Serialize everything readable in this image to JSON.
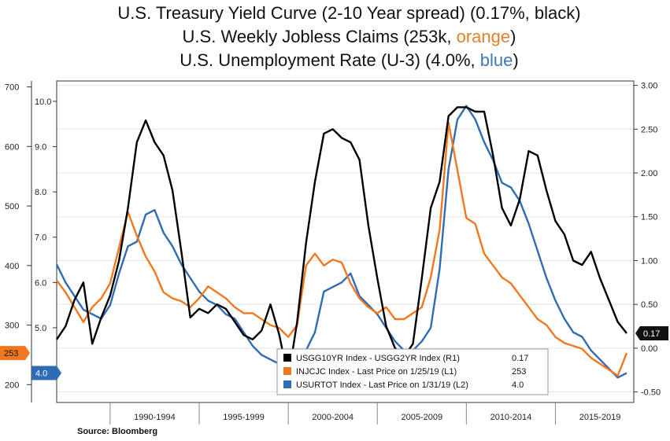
{
  "title": {
    "line1": "U.S. Treasury Yield Curve (2-10 Year spread) (0.17%, black)",
    "line2_prefix": "U.S. Weekly Jobless Claims (253k, ",
    "line2_color_word": "orange",
    "line2_suffix": ")",
    "line3_prefix": "U.S. Unemployment Rate (U-3) (4.0%, ",
    "line3_color_word": "blue",
    "line3_suffix": ")"
  },
  "source": "Source: Bloomberg",
  "chart_data": {
    "type": "line",
    "x_range": [
      1987.0,
      2019.4
    ],
    "period_labels": [
      {
        "label": "1990-1994",
        "center": 1992.5
      },
      {
        "label": "1995-1999",
        "center": 1997.5
      },
      {
        "label": "2000-2004",
        "center": 2002.5
      },
      {
        "label": "2005-2009",
        "center": 2007.5
      },
      {
        "label": "2010-2014",
        "center": 2012.5
      },
      {
        "label": "2015-2019",
        "center": 2017.5
      }
    ],
    "period_dividers": [
      1990,
      1995,
      2000,
      2005,
      2010,
      2015
    ],
    "axes": {
      "claims": {
        "ticks": [
          200,
          300,
          400,
          500,
          600,
          700
        ],
        "range": [
          170,
          710
        ]
      },
      "unemployment": {
        "ticks": [
          "5.0",
          "6.0",
          "7.0",
          "8.0",
          "9.0",
          "10.0"
        ],
        "range": [
          3.35,
          10.45
        ]
      },
      "spread": {
        "ticks": [
          "-0.50",
          "0.00",
          "0.50",
          "1.00",
          "1.50",
          "2.00",
          "2.50",
          "3.00"
        ],
        "range": [
          -0.62,
          3.05
        ]
      }
    },
    "badges": {
      "claims": "253",
      "unemployment": "4.0",
      "spread": "0.17"
    },
    "legend": [
      {
        "label": "USGG10YR Index - USGG2YR Index (R1)",
        "value": "0.17",
        "color": "#000000"
      },
      {
        "label": "INJCJC Index - Last Price on 1/25/19 (L1)",
        "value": "253",
        "color": "#f0781e"
      },
      {
        "label": "USURTOT Index - Last Price on 1/31/19 (L2)",
        "value": "4.0",
        "color": "#2e6db4"
      }
    ],
    "series": [
      {
        "key": "spread",
        "color": "#000000",
        "axis": "spread",
        "x": [
          1987.0,
          1987.5,
          1988.0,
          1988.5,
          1989.0,
          1989.5,
          1990.0,
          1990.5,
          1991.0,
          1991.5,
          1992.0,
          1992.5,
          1993.0,
          1993.5,
          1994.0,
          1994.5,
          1995.0,
          1995.5,
          1996.0,
          1996.5,
          1997.0,
          1997.5,
          1998.0,
          1998.5,
          1999.0,
          1999.5,
          2000.0,
          2000.5,
          2001.0,
          2001.5,
          2002.0,
          2002.5,
          2003.0,
          2003.5,
          2004.0,
          2004.5,
          2005.0,
          2005.5,
          2006.0,
          2006.5,
          2007.0,
          2007.5,
          2008.0,
          2008.5,
          2009.0,
          2009.5,
          2010.0,
          2010.5,
          2011.0,
          2011.5,
          2012.0,
          2012.5,
          2013.0,
          2013.5,
          2014.0,
          2014.5,
          2015.0,
          2015.5,
          2016.0,
          2016.5,
          2017.0,
          2017.5,
          2018.0,
          2018.5,
          2019.0
        ],
        "values": [
          0.1,
          0.25,
          0.55,
          0.75,
          0.05,
          0.35,
          0.6,
          1.0,
          1.6,
          2.35,
          2.6,
          2.35,
          2.2,
          1.8,
          1.1,
          0.35,
          0.45,
          0.4,
          0.5,
          0.45,
          0.3,
          0.15,
          0.1,
          0.2,
          0.5,
          0.15,
          -0.35,
          0.3,
          1.2,
          1.9,
          2.45,
          2.5,
          2.4,
          2.35,
          2.15,
          1.4,
          0.8,
          0.25,
          0.0,
          -0.1,
          0.05,
          0.8,
          1.6,
          1.9,
          2.65,
          2.75,
          2.75,
          2.7,
          2.7,
          2.2,
          1.6,
          1.4,
          1.7,
          2.25,
          2.2,
          1.8,
          1.45,
          1.3,
          1.0,
          0.95,
          1.1,
          0.8,
          0.55,
          0.3,
          0.17
        ]
      },
      {
        "key": "claims",
        "color": "#f0781e",
        "axis": "claims",
        "x": [
          1987.0,
          1987.5,
          1988.0,
          1988.5,
          1989.0,
          1989.5,
          1990.0,
          1990.5,
          1991.0,
          1991.5,
          1992.0,
          1992.5,
          1993.0,
          1993.5,
          1994.0,
          1994.5,
          1995.0,
          1995.5,
          1996.0,
          1996.5,
          1997.0,
          1997.5,
          1998.0,
          1998.5,
          1999.0,
          1999.5,
          2000.0,
          2000.5,
          2001.0,
          2001.5,
          2002.0,
          2002.5,
          2003.0,
          2003.5,
          2004.0,
          2004.5,
          2005.0,
          2005.5,
          2006.0,
          2006.5,
          2007.0,
          2007.5,
          2008.0,
          2008.5,
          2009.0,
          2009.5,
          2010.0,
          2010.5,
          2011.0,
          2011.5,
          2012.0,
          2012.5,
          2013.0,
          2013.5,
          2014.0,
          2014.5,
          2015.0,
          2015.5,
          2016.0,
          2016.5,
          2017.0,
          2017.5,
          2018.0,
          2018.5,
          2019.0
        ],
        "values": [
          375,
          355,
          330,
          305,
          330,
          345,
          370,
          430,
          490,
          450,
          415,
          390,
          355,
          345,
          340,
          330,
          345,
          365,
          355,
          345,
          330,
          320,
          320,
          310,
          300,
          295,
          280,
          300,
          400,
          420,
          400,
          410,
          405,
          370,
          345,
          330,
          320,
          330,
          310,
          310,
          320,
          330,
          380,
          460,
          640,
          560,
          480,
          470,
          420,
          400,
          380,
          370,
          350,
          330,
          310,
          300,
          280,
          270,
          265,
          260,
          245,
          235,
          225,
          215,
          253
        ]
      },
      {
        "key": "unemployment",
        "color": "#2e6db4",
        "axis": "unemployment",
        "x": [
          1987.0,
          1987.5,
          1988.0,
          1988.5,
          1989.0,
          1989.5,
          1990.0,
          1990.5,
          1991.0,
          1991.5,
          1992.0,
          1992.5,
          1993.0,
          1993.5,
          1994.0,
          1994.5,
          1995.0,
          1995.5,
          1996.0,
          1996.5,
          1997.0,
          1997.5,
          1998.0,
          1998.5,
          1999.0,
          1999.5,
          2000.0,
          2000.5,
          2001.0,
          2001.5,
          2002.0,
          2002.5,
          2003.0,
          2003.5,
          2004.0,
          2004.5,
          2005.0,
          2005.5,
          2006.0,
          2006.5,
          2007.0,
          2007.5,
          2008.0,
          2008.5,
          2009.0,
          2009.5,
          2010.0,
          2010.5,
          2011.0,
          2011.5,
          2012.0,
          2012.5,
          2013.0,
          2013.5,
          2014.0,
          2014.5,
          2015.0,
          2015.5,
          2016.0,
          2016.5,
          2017.0,
          2017.5,
          2018.0,
          2018.5,
          2019.0
        ],
        "values": [
          6.4,
          6.0,
          5.7,
          5.4,
          5.3,
          5.2,
          5.5,
          6.2,
          6.8,
          6.9,
          7.5,
          7.6,
          7.1,
          6.8,
          6.4,
          6.1,
          5.8,
          5.6,
          5.5,
          5.3,
          5.2,
          4.9,
          4.6,
          4.4,
          4.3,
          4.2,
          4.0,
          4.0,
          4.5,
          4.9,
          5.8,
          5.9,
          6.0,
          6.2,
          5.7,
          5.5,
          5.3,
          5.0,
          4.7,
          4.5,
          4.5,
          4.7,
          5.0,
          6.3,
          8.5,
          9.6,
          9.9,
          9.6,
          9.1,
          8.7,
          8.2,
          8.1,
          7.8,
          7.3,
          6.7,
          6.1,
          5.6,
          5.2,
          4.9,
          4.8,
          4.5,
          4.3,
          4.1,
          3.9,
          4.0
        ]
      }
    ]
  }
}
